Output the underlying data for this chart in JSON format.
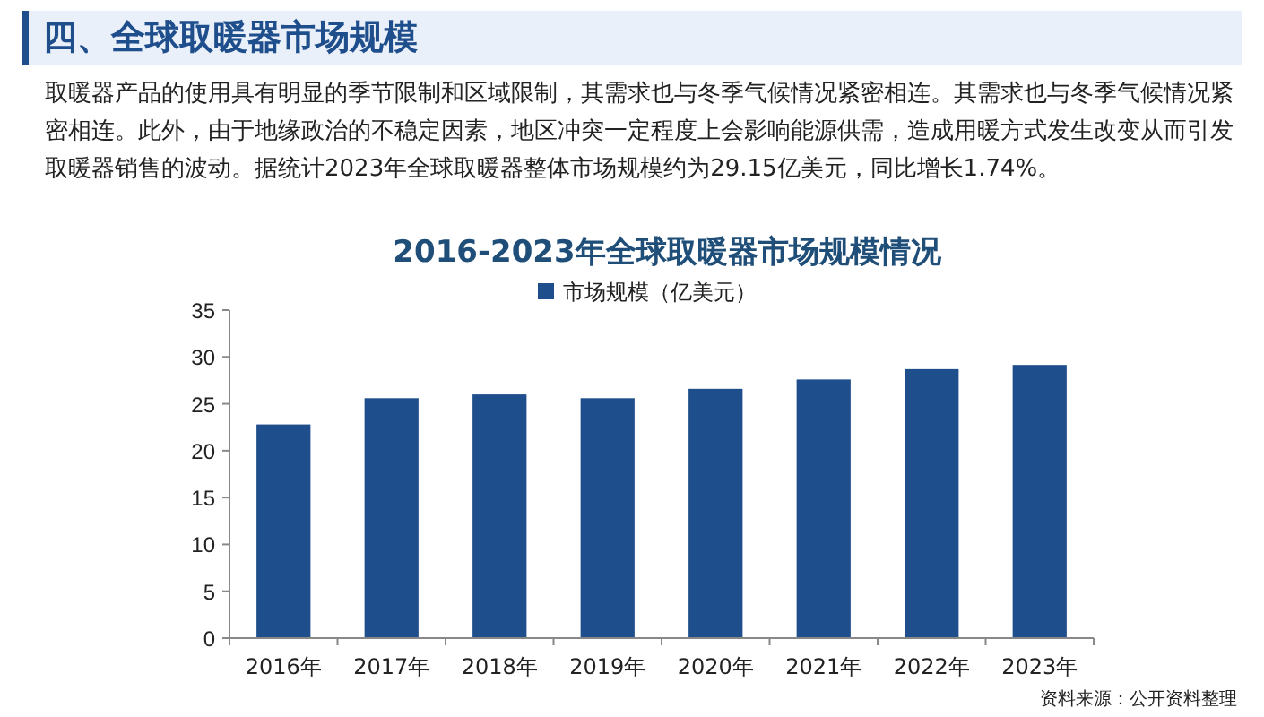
{
  "chart_data": {
    "type": "bar",
    "title": "2016-2023年全球取暖器市场规模情况",
    "categories": [
      "2016年",
      "2017年",
      "2018年",
      "2019年",
      "2020年",
      "2021年",
      "2022年",
      "2023年"
    ],
    "series": [
      {
        "name": "市场规模（亿美元）",
        "color": "#1f4e8c",
        "values": [
          22.8,
          25.6,
          26.0,
          25.6,
          26.6,
          27.6,
          28.7,
          29.15
        ]
      }
    ],
    "ylim": [
      0,
      35
    ],
    "yticks": [
      0,
      5,
      10,
      15,
      20,
      25,
      30,
      35
    ],
    "grid": false,
    "legend": "top",
    "annotations": [
      "四、全球取暖器市场规模",
      "取暖器产品的使用具有明显的季节限制和区域限制，其需求也与冬季气候情况紧密相连。其需求也与冬季气候情况紧密相连。此外，由于地缘政治的不稳定因素，地区冲突一定程度上会影响能源供需，造成用暖方式发生改变从而引发取暖器销售的波动。据统计2023年全球取暖器整体市场规模约为29.15亿美元，同比增长1.74%。",
      "资料来源：公开资料整理"
    ]
  }
}
